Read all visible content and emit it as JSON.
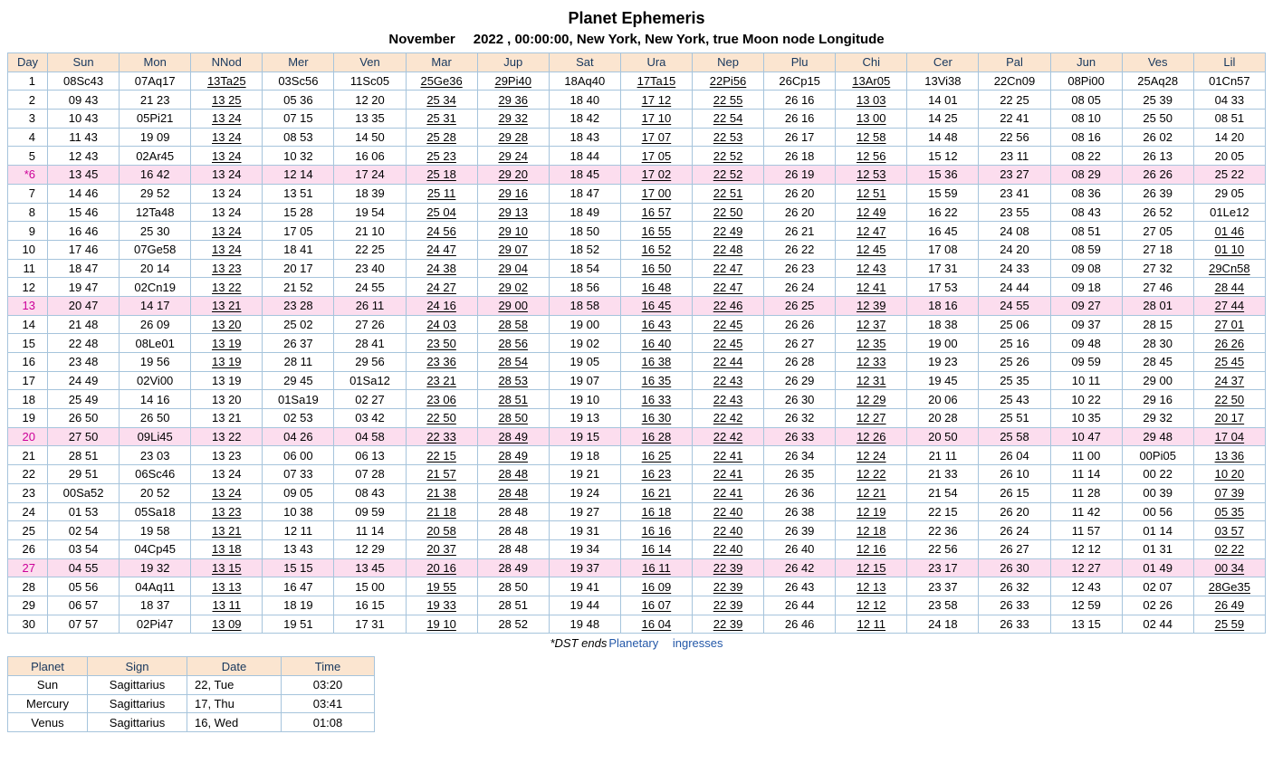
{
  "title": "Planet Ephemeris",
  "subtitle": {
    "month": "November",
    "year": "2022",
    "details": ", 00:00:00, New York, New York, true Moon node",
    "mode": "Longitude"
  },
  "colors": {
    "header_bg": "#FBE5D0",
    "header_text": "#17375D",
    "border": "#A6C4DC",
    "highlight_bg": "#FCDDEE",
    "highlight_text": "#CC0099",
    "link_blue": "#2458A8"
  },
  "ephemeris": {
    "columns": [
      "Day",
      "Sun",
      "Mon",
      "NNod",
      "Mer",
      "Ven",
      "Mar",
      "Jup",
      "Sat",
      "Ura",
      "Nep",
      "Plu",
      "Chi",
      "Cer",
      "Pal",
      "Jun",
      "Ves",
      "Lil"
    ],
    "rows": [
      {
        "day": "1",
        "hl": false,
        "cells": [
          "08Sc43",
          "07Aq17",
          "u:13Ta25",
          "03Sc56",
          "11Sc05",
          "u:25Ge36",
          "u:29Pi40",
          "18Aq40",
          "u:17Ta15",
          "u:22Pi56",
          "26Cp15",
          "u:13Ar05",
          "13Vi38",
          "22Cn09",
          "08Pi00",
          "25Aq28",
          "01Cn57"
        ]
      },
      {
        "day": "2",
        "hl": false,
        "cells": [
          "09 43",
          "21 23",
          "u:13 25",
          "05 36",
          "12 20",
          "u:25 34",
          "u:29 36",
          "18 40",
          "u:17 12",
          "u:22 55",
          "26 16",
          "u:13 03",
          "14 01",
          "22 25",
          "08 05",
          "25 39",
          "04 33"
        ]
      },
      {
        "day": "3",
        "hl": false,
        "cells": [
          "10 43",
          "05Pi21",
          "u:13 24",
          "07 15",
          "13 35",
          "u:25 31",
          "u:29 32",
          "18 42",
          "u:17 10",
          "u:22 54",
          "26 16",
          "u:13 00",
          "14 25",
          "22 41",
          "08 10",
          "25 50",
          "08 51"
        ]
      },
      {
        "day": "4",
        "hl": false,
        "cells": [
          "11 43",
          "19 09",
          "u:13 24",
          "08 53",
          "14 50",
          "u:25 28",
          "u:29 28",
          "18 43",
          "u:17 07",
          "u:22 53",
          "26 17",
          "u:12 58",
          "14 48",
          "22 56",
          "08 16",
          "26 02",
          "14 20"
        ]
      },
      {
        "day": "5",
        "hl": false,
        "cells": [
          "12 43",
          "02Ar45",
          "u:13 24",
          "10 32",
          "16 06",
          "u:25 23",
          "u:29 24",
          "18 44",
          "u:17 05",
          "u:22 52",
          "26 18",
          "u:12 56",
          "15 12",
          "23 11",
          "08 22",
          "26 13",
          "20 05"
        ]
      },
      {
        "day": "*6",
        "hl": true,
        "cells": [
          "13 45",
          "16 42",
          "13 24",
          "12 14",
          "17 24",
          "u:25 18",
          "u:29 20",
          "18 45",
          "u:17 02",
          "u:22 52",
          "26 19",
          "u:12 53",
          "15 36",
          "23 27",
          "08 29",
          "26 26",
          "25 22"
        ]
      },
      {
        "day": "7",
        "hl": false,
        "cells": [
          "14 46",
          "29 52",
          "13 24",
          "13 51",
          "18 39",
          "u:25 11",
          "u:29 16",
          "18 47",
          "u:17 00",
          "u:22 51",
          "26 20",
          "u:12 51",
          "15 59",
          "23 41",
          "08 36",
          "26 39",
          "29 05"
        ]
      },
      {
        "day": "8",
        "hl": false,
        "cells": [
          "15 46",
          "12Ta48",
          "13 24",
          "15 28",
          "19 54",
          "u:25 04",
          "u:29 13",
          "18 49",
          "u:16 57",
          "u:22 50",
          "26 20",
          "u:12 49",
          "16 22",
          "23 55",
          "08 43",
          "26 52",
          "01Le12"
        ]
      },
      {
        "day": "9",
        "hl": false,
        "cells": [
          "16 46",
          "25 30",
          "u:13 24",
          "17 05",
          "21 10",
          "u:24 56",
          "u:29 10",
          "18 50",
          "u:16 55",
          "u:22 49",
          "26 21",
          "u:12 47",
          "16 45",
          "24 08",
          "08 51",
          "27 05",
          "u:01 46"
        ]
      },
      {
        "day": "10",
        "hl": false,
        "cells": [
          "17 46",
          "07Ge58",
          "u:13 24",
          "18 41",
          "22 25",
          "u:24 47",
          "u:29 07",
          "18 52",
          "u:16 52",
          "u:22 48",
          "26 22",
          "u:12 45",
          "17 08",
          "24 20",
          "08 59",
          "27 18",
          "u:01 10"
        ]
      },
      {
        "day": "11",
        "hl": false,
        "cells": [
          "18 47",
          "20 14",
          "u:13 23",
          "20 17",
          "23 40",
          "u:24 38",
          "u:29 04",
          "18 54",
          "u:16 50",
          "u:22 47",
          "26 23",
          "u:12 43",
          "17 31",
          "24 33",
          "09 08",
          "27 32",
          "u:29Cn58"
        ]
      },
      {
        "day": "12",
        "hl": false,
        "cells": [
          "19 47",
          "02Cn19",
          "u:13 22",
          "21 52",
          "24 55",
          "u:24 27",
          "u:29 02",
          "18 56",
          "u:16 48",
          "u:22 47",
          "26 24",
          "u:12 41",
          "17 53",
          "24 44",
          "09 18",
          "27 46",
          "u:28 44"
        ]
      },
      {
        "day": "13",
        "hl": true,
        "cells": [
          "20 47",
          "14 17",
          "u:13 21",
          "23 28",
          "26 11",
          "u:24 16",
          "u:29 00",
          "18 58",
          "u:16 45",
          "u:22 46",
          "26 25",
          "u:12 39",
          "18 16",
          "24 55",
          "09 27",
          "28 01",
          "u:27 44"
        ]
      },
      {
        "day": "14",
        "hl": false,
        "cells": [
          "21 48",
          "26 09",
          "u:13 20",
          "25 02",
          "27 26",
          "u:24 03",
          "u:28 58",
          "19 00",
          "u:16 43",
          "u:22 45",
          "26 26",
          "u:12 37",
          "18 38",
          "25 06",
          "09 37",
          "28 15",
          "u:27 01"
        ]
      },
      {
        "day": "15",
        "hl": false,
        "cells": [
          "22 48",
          "08Le01",
          "u:13 19",
          "26 37",
          "28 41",
          "u:23 50",
          "u:28 56",
          "19 02",
          "u:16 40",
          "u:22 45",
          "26 27",
          "u:12 35",
          "19 00",
          "25 16",
          "09 48",
          "28 30",
          "u:26 26"
        ]
      },
      {
        "day": "16",
        "hl": false,
        "cells": [
          "23 48",
          "19 56",
          "u:13 19",
          "28 11",
          "29 56",
          "u:23 36",
          "u:28 54",
          "19 05",
          "u:16 38",
          "u:22 44",
          "26 28",
          "u:12 33",
          "19 23",
          "25 26",
          "09 59",
          "28 45",
          "u:25 45"
        ]
      },
      {
        "day": "17",
        "hl": false,
        "cells": [
          "24 49",
          "02Vi00",
          "13 19",
          "29 45",
          "01Sa12",
          "u:23 21",
          "u:28 53",
          "19 07",
          "u:16 35",
          "u:22 43",
          "26 29",
          "u:12 31",
          "19 45",
          "25 35",
          "10 11",
          "29 00",
          "u:24 37"
        ]
      },
      {
        "day": "18",
        "hl": false,
        "cells": [
          "25 49",
          "14 16",
          "13 20",
          "01Sa19",
          "02 27",
          "u:23 06",
          "u:28 51",
          "19 10",
          "u:16 33",
          "u:22 43",
          "26 30",
          "u:12 29",
          "20 06",
          "25 43",
          "10 22",
          "29 16",
          "u:22 50"
        ]
      },
      {
        "day": "19",
        "hl": false,
        "cells": [
          "26 50",
          "26 50",
          "13 21",
          "02 53",
          "03 42",
          "u:22 50",
          "u:28 50",
          "19 13",
          "u:16 30",
          "u:22 42",
          "26 32",
          "u:12 27",
          "20 28",
          "25 51",
          "10 35",
          "29 32",
          "u:20 17"
        ]
      },
      {
        "day": "20",
        "hl": true,
        "cells": [
          "27 50",
          "09Li45",
          "13 22",
          "04 26",
          "04 58",
          "u:22 33",
          "u:28 49",
          "19 15",
          "u:16 28",
          "u:22 42",
          "26 33",
          "u:12 26",
          "20 50",
          "25 58",
          "10 47",
          "29 48",
          "u:17 04"
        ]
      },
      {
        "day": "21",
        "hl": false,
        "cells": [
          "28 51",
          "23 03",
          "13 23",
          "06 00",
          "06 13",
          "u:22 15",
          "u:28 49",
          "19 18",
          "u:16 25",
          "u:22 41",
          "26 34",
          "u:12 24",
          "21 11",
          "26 04",
          "11 00",
          "00Pi05",
          "u:13 36"
        ]
      },
      {
        "day": "22",
        "hl": false,
        "cells": [
          "29 51",
          "06Sc46",
          "13 24",
          "07 33",
          "07 28",
          "u:21 57",
          "u:28 48",
          "19 21",
          "u:16 23",
          "u:22 41",
          "26 35",
          "u:12 22",
          "21 33",
          "26 10",
          "11 14",
          "00 22",
          "u:10 20"
        ]
      },
      {
        "day": "23",
        "hl": false,
        "cells": [
          "00Sa52",
          "20 52",
          "u:13 24",
          "09 05",
          "08 43",
          "u:21 38",
          "u:28 48",
          "19 24",
          "u:16 21",
          "u:22 41",
          "26 36",
          "u:12 21",
          "21 54",
          "26 15",
          "11 28",
          "00 39",
          "u:07 39"
        ]
      },
      {
        "day": "24",
        "hl": false,
        "cells": [
          "01 53",
          "05Sa18",
          "u:13 23",
          "10 38",
          "09 59",
          "u:21 18",
          "28 48",
          "19 27",
          "u:16 18",
          "u:22 40",
          "26 38",
          "u:12 19",
          "22 15",
          "26 20",
          "11 42",
          "00 56",
          "u:05 35"
        ]
      },
      {
        "day": "25",
        "hl": false,
        "cells": [
          "02 54",
          "19 58",
          "u:13 21",
          "12 11",
          "11 14",
          "u:20 58",
          "28 48",
          "19 31",
          "u:16 16",
          "u:22 40",
          "26 39",
          "u:12 18",
          "22 36",
          "26 24",
          "11 57",
          "01 14",
          "u:03 57"
        ]
      },
      {
        "day": "26",
        "hl": false,
        "cells": [
          "03 54",
          "04Cp45",
          "u:13 18",
          "13 43",
          "12 29",
          "u:20 37",
          "28 48",
          "19 34",
          "u:16 14",
          "u:22 40",
          "26 40",
          "u:12 16",
          "22 56",
          "26 27",
          "12 12",
          "01 31",
          "u:02 22"
        ]
      },
      {
        "day": "27",
        "hl": true,
        "cells": [
          "04 55",
          "19 32",
          "u:13 15",
          "15 15",
          "13 45",
          "u:20 16",
          "28 49",
          "19 37",
          "u:16 11",
          "u:22 39",
          "26 42",
          "u:12 15",
          "23 17",
          "26 30",
          "12 27",
          "01 49",
          "u:00 34"
        ]
      },
      {
        "day": "28",
        "hl": false,
        "cells": [
          "05 56",
          "04Aq11",
          "u:13 13",
          "16 47",
          "15 00",
          "u:19 55",
          "28 50",
          "19 41",
          "u:16 09",
          "u:22 39",
          "26 43",
          "u:12 13",
          "23 37",
          "26 32",
          "12 43",
          "02 07",
          "u:28Ge35"
        ]
      },
      {
        "day": "29",
        "hl": false,
        "cells": [
          "06 57",
          "18 37",
          "u:13 11",
          "18 19",
          "16 15",
          "u:19 33",
          "28 51",
          "19 44",
          "u:16 07",
          "u:22 39",
          "26 44",
          "u:12 12",
          "23 58",
          "26 33",
          "12 59",
          "02 26",
          "u:26 49"
        ]
      },
      {
        "day": "30",
        "hl": false,
        "cells": [
          "07 57",
          "02Pi47",
          "u:13 09",
          "19 51",
          "17 31",
          "u:19 10",
          "28 52",
          "19 48",
          "u:16 04",
          "u:22 39",
          "26 46",
          "u:12 11",
          "24 18",
          "26 33",
          "13 15",
          "02 44",
          "u:25 59"
        ]
      }
    ]
  },
  "footer": {
    "dst_note": "*DST ends",
    "ingresses_label": "Planetary ingresses"
  },
  "ingress_table": {
    "columns": [
      "Planet",
      "Sign",
      "Date",
      "Time"
    ],
    "rows": [
      [
        "Sun",
        "Sagittarius",
        "22, Tue",
        "03:20"
      ],
      [
        "Mercury",
        "Sagittarius",
        "17, Thu",
        "03:41"
      ],
      [
        "Venus",
        "Sagittarius",
        "16, Wed",
        "01:08"
      ]
    ]
  }
}
